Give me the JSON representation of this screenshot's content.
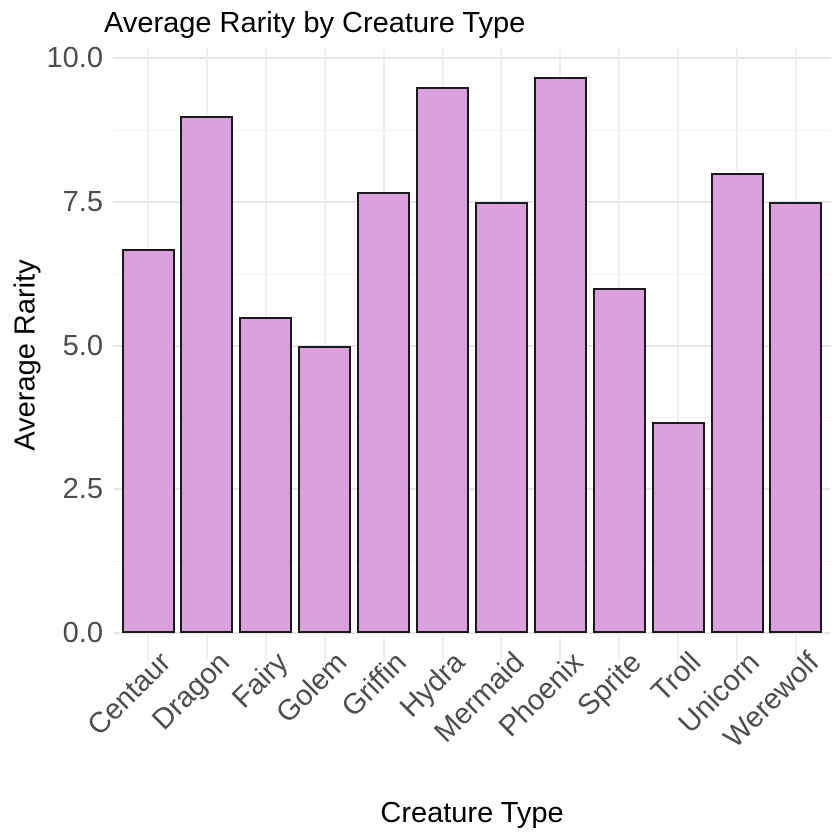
{
  "chart_data": {
    "type": "bar",
    "title": "Average Rarity by Creature Type",
    "xlabel": "Creature Type",
    "ylabel": "Average Rarity",
    "categories": [
      "Centaur",
      "Dragon",
      "Fairy",
      "Golem",
      "Griffin",
      "Hydra",
      "Mermaid",
      "Phoenix",
      "Sprite",
      "Troll",
      "Unicorn",
      "Werewolf"
    ],
    "values": [
      6.67,
      9.0,
      5.5,
      5.0,
      7.67,
      9.5,
      7.5,
      9.67,
      6.0,
      3.67,
      8.0,
      7.5
    ],
    "ylim": [
      0,
      10.15
    ],
    "yticks_major": [
      0,
      2.5,
      5,
      7.5,
      10
    ],
    "ytick_labels": [
      "0.0",
      "2.5",
      "5.0",
      "7.5",
      "10.0"
    ],
    "yticks_minor": [
      1.25,
      3.75,
      6.25,
      8.75
    ],
    "grid": "major and minor horizontal, vertical at category centers",
    "legend_position": "none",
    "colors": {
      "bar_fill": "#D9A0DB",
      "bar_stroke": "#1A1A1A",
      "grid_major": "#E7E7E7",
      "grid_minor": "#F2F2F2",
      "tick_text": "#4D4D4D",
      "title_text": "#000000",
      "background": "#FFFFFF"
    }
  }
}
